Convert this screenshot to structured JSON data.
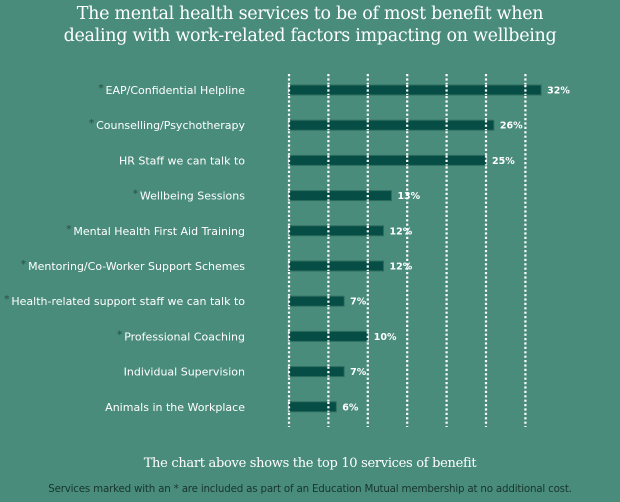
{
  "colors": {
    "background": "#4a8c7b",
    "bar": "#054d45",
    "bar_edge": "#2e6e5f",
    "grid": "#ffffff",
    "text": "#ffffff",
    "asterisk": "#2f5d4e",
    "footnote": "#17352d"
  },
  "chart_data": {
    "type": "bar",
    "orientation": "horizontal",
    "title": "The mental health services to be of most benefit when dealing with work-related factors impacting on wellbeing",
    "title_lines": [
      "The mental health services to be of most benefit when",
      "dealing with work-related factors impacting on wellbeing"
    ],
    "xlabel": "",
    "ylabel": "",
    "xlim": [
      0,
      35
    ],
    "grid": true,
    "grid_style": "dotted vertical",
    "grid_step": 5,
    "value_suffix": "%",
    "categories": [
      "EAP/Confidential Helpline",
      "Counselling/Psychotherapy",
      "HR Staff we can talk to",
      "Wellbeing Sessions",
      "Mental Health First Aid Training",
      "Mentoring/Co-Worker Support Schemes",
      "Health-related support staff we can talk to",
      "Professional Coaching",
      "Individual Supervision",
      "Animals in the Workplace"
    ],
    "values": [
      32,
      26,
      25,
      13,
      12,
      12,
      7,
      10,
      7,
      6
    ],
    "value_labels": [
      "32%",
      "26%",
      "25%",
      "13%",
      "12%",
      "12%",
      "7%",
      "10%",
      "7%",
      "6%"
    ],
    "included_in_membership": [
      true,
      true,
      false,
      true,
      true,
      true,
      true,
      true,
      false,
      false
    ],
    "marker": "*",
    "legend": null
  },
  "caption": "The chart above shows the top 10 services of benefit",
  "footnote": "Services marked with an * are included as part of an Education Mutual membership at no additional cost."
}
